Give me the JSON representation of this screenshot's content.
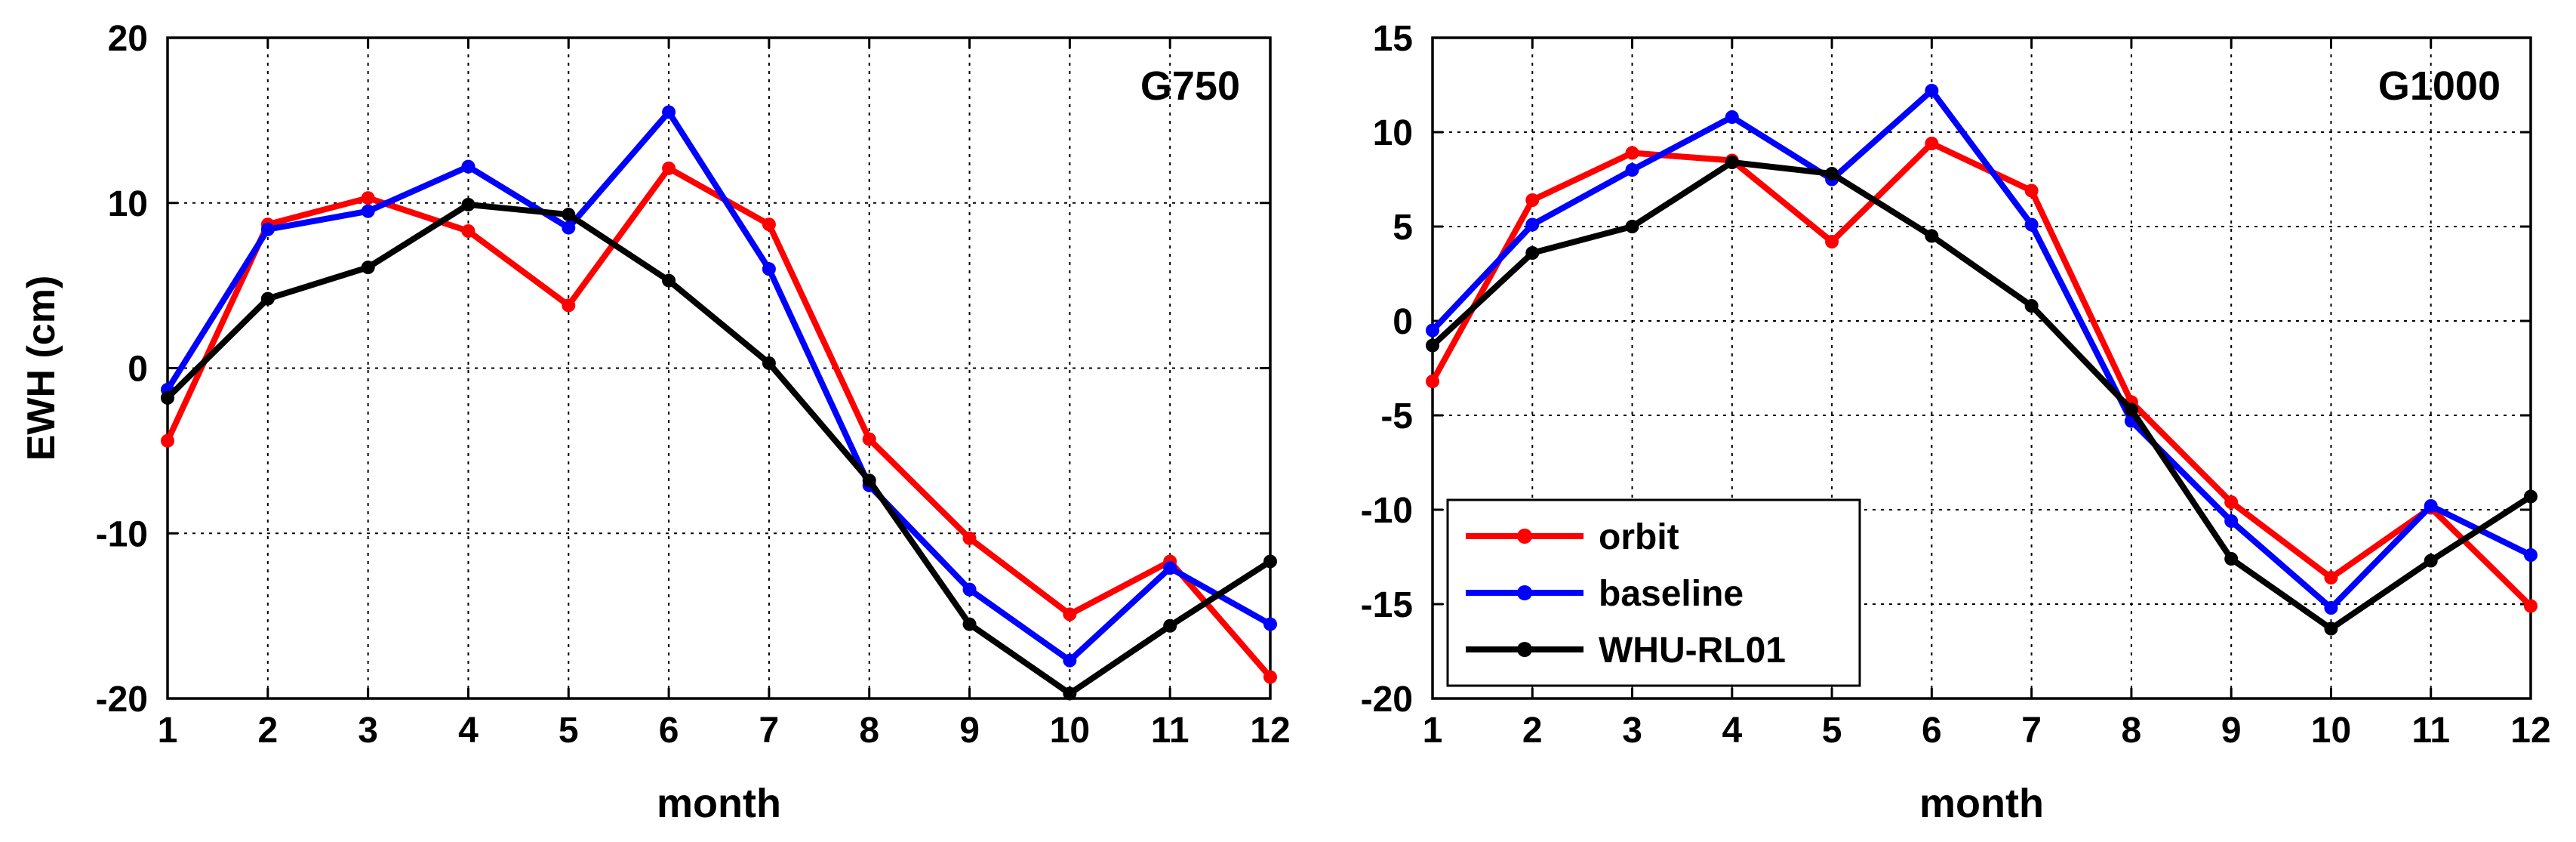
{
  "chart_data": [
    {
      "type": "line",
      "title": "G750",
      "xlabel": "month",
      "ylabel": "EWH (cm)",
      "xlim": [
        1,
        12
      ],
      "ylim": [
        -20,
        20
      ],
      "x": [
        1,
        2,
        3,
        4,
        5,
        6,
        7,
        8,
        9,
        10,
        11,
        12
      ],
      "xticks": [
        "1",
        "2",
        "3",
        "4",
        "5",
        "6",
        "7",
        "8",
        "9",
        "10",
        "11",
        "12"
      ],
      "yticks": [
        -20,
        -10,
        0,
        10,
        20
      ],
      "grid": true,
      "series": [
        {
          "name": "orbit",
          "color": "#ff0000",
          "values": [
            -4.4,
            8.7,
            10.3,
            8.3,
            3.8,
            12.1,
            8.7,
            -4.3,
            -10.3,
            -14.9,
            -11.7,
            -18.7
          ]
        },
        {
          "name": "baseline",
          "color": "#0000ff",
          "values": [
            -1.3,
            8.4,
            9.5,
            12.2,
            8.5,
            15.5,
            6.0,
            -7.1,
            -13.4,
            -17.7,
            -12.1,
            -15.5
          ]
        },
        {
          "name": "WHU-RL01",
          "color": "#000000",
          "values": [
            -1.8,
            4.2,
            6.1,
            9.9,
            9.3,
            5.3,
            0.3,
            -6.8,
            -15.5,
            -19.7,
            -15.6,
            -11.7
          ]
        }
      ]
    },
    {
      "type": "line",
      "title": "G1000",
      "xlabel": "month",
      "ylabel": "",
      "xlim": [
        1,
        12
      ],
      "ylim": [
        -20,
        15
      ],
      "x": [
        1,
        2,
        3,
        4,
        5,
        6,
        7,
        8,
        9,
        10,
        11,
        12
      ],
      "xticks": [
        "1",
        "2",
        "3",
        "4",
        "5",
        "6",
        "7",
        "8",
        "9",
        "10",
        "11",
        "12"
      ],
      "yticks": [
        -20,
        -15,
        -10,
        -5,
        0,
        5,
        10,
        15
      ],
      "grid": true,
      "legend": "bottom-left",
      "series": [
        {
          "name": "orbit",
          "color": "#ff0000",
          "values": [
            -3.2,
            6.4,
            8.9,
            8.5,
            4.2,
            9.4,
            6.9,
            -4.3,
            -9.6,
            -13.6,
            -9.9,
            -15.1
          ]
        },
        {
          "name": "baseline",
          "color": "#0000ff",
          "values": [
            -0.5,
            5.1,
            8.0,
            10.8,
            7.5,
            12.2,
            5.1,
            -5.3,
            -10.6,
            -15.2,
            -9.8,
            -12.4
          ]
        },
        {
          "name": "WHU-RL01",
          "color": "#000000",
          "values": [
            -1.3,
            3.6,
            5.0,
            8.4,
            7.8,
            4.5,
            0.8,
            -4.7,
            -12.6,
            -16.3,
            -12.7,
            -9.3
          ]
        }
      ]
    }
  ]
}
